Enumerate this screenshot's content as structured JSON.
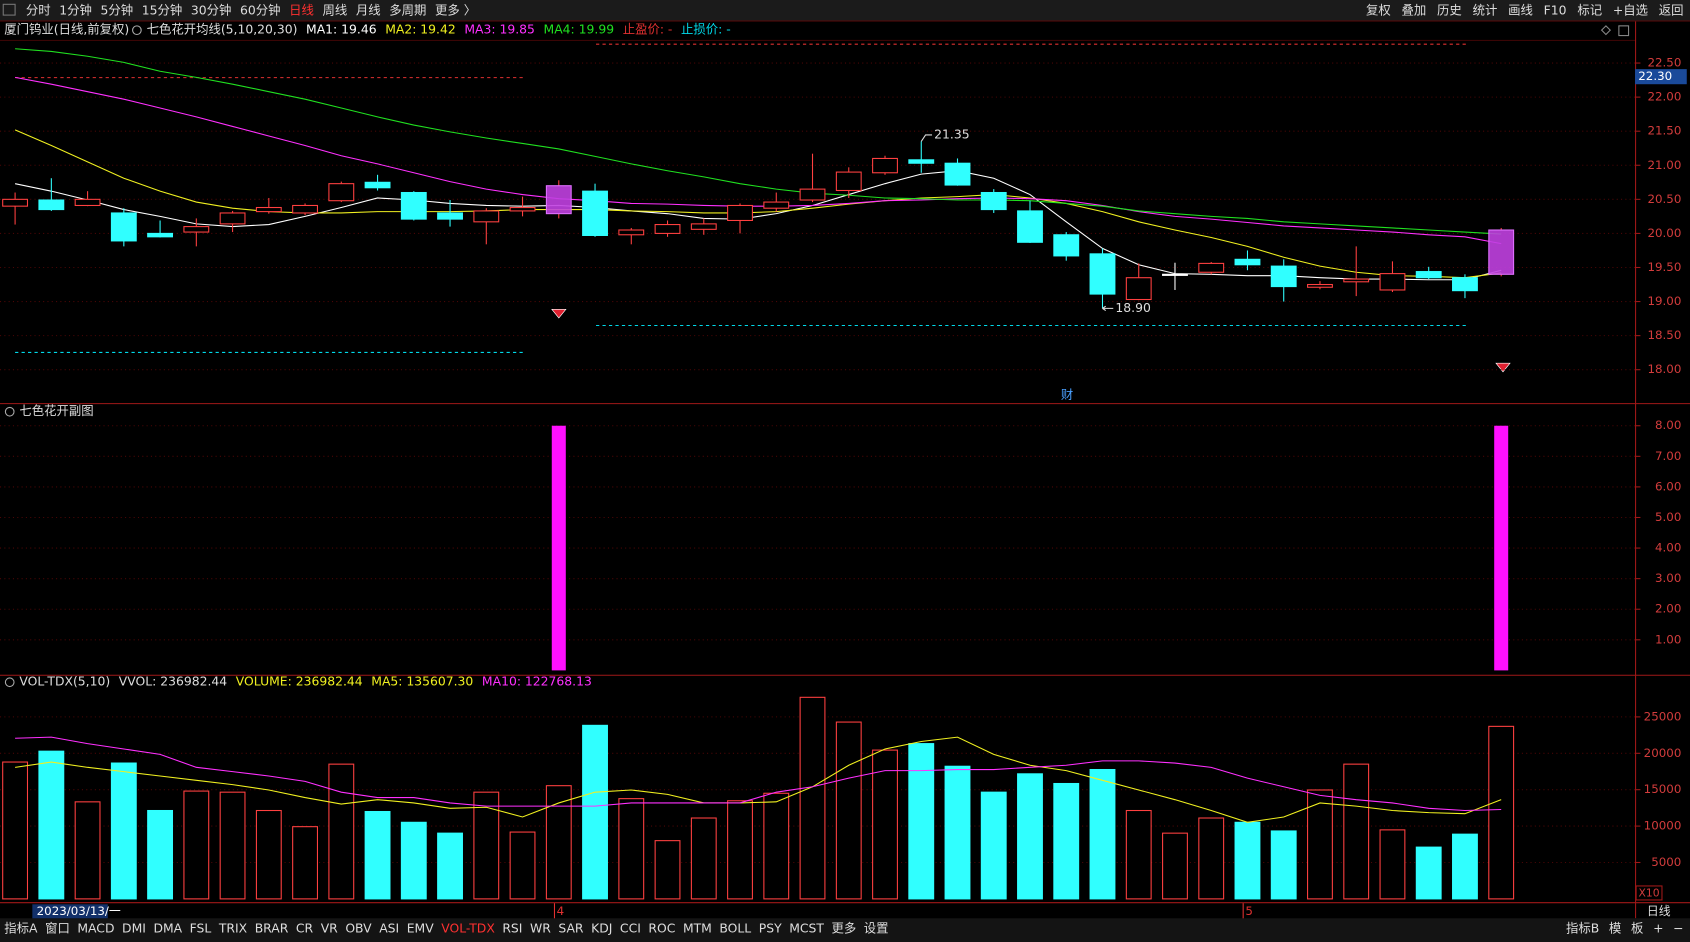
{
  "toolbar": {
    "periods": [
      "分时",
      "1分钟",
      "5分钟",
      "15分钟",
      "30分钟",
      "60分钟",
      "日线",
      "周线",
      "月线",
      "多周期",
      "更多 〉"
    ],
    "active": 6,
    "tools": [
      "复权",
      "叠加",
      "历史",
      "统计",
      "画线",
      "F10",
      "标记",
      "+自选",
      "返回"
    ]
  },
  "bottom_tabs": {
    "left": [
      "指标A",
      "窗口",
      "MACD",
      "DMI",
      "DMA",
      "FSL",
      "TRIX",
      "BRAR",
      "CR",
      "VR",
      "OBV",
      "ASI",
      "EMV",
      "VOL-TDX",
      "RSI",
      "WR",
      "SAR",
      "KDJ",
      "CCI",
      "ROC",
      "MTM",
      "BOLL",
      "PSY",
      "MCST",
      "更多",
      "设置"
    ],
    "active": 13,
    "right": [
      "指标B",
      "模",
      "板",
      "+",
      "−"
    ]
  },
  "cursor_date": "2023/03/13/一",
  "period_label": "日线",
  "event_label": "财",
  "chart_data": [
    {
      "type": "candlestick",
      "title": "厦门钨业(日线,前复权)",
      "indicator": "七色花开均线(5,10,20,30)",
      "extras": [
        {
          "text": "止盈价: -",
          "color": "#e03030"
        },
        {
          "text": "止损价: -",
          "color": "#00d8e8"
        }
      ],
      "up_color": "#ff4040",
      "down_color": "#30ffff",
      "flat_color": "#ffffff",
      "signal_color": "#c040e0",
      "open": [
        20.4,
        20.49,
        20.41,
        20.3,
        20.0,
        20.02,
        20.14,
        20.32,
        20.3,
        20.48,
        20.75,
        20.6,
        20.3,
        20.17,
        20.33,
        20.29,
        20.62,
        19.98,
        20.0,
        20.06,
        20.19,
        20.37,
        20.49,
        20.63,
        20.89,
        21.08,
        21.03,
        20.6,
        20.33,
        19.98,
        19.7,
        19.03,
        19.4,
        19.43,
        19.62,
        19.52,
        19.21,
        19.29,
        19.17,
        19.44,
        19.35,
        19.4
      ],
      "close": [
        20.5,
        20.35,
        20.5,
        19.89,
        19.95,
        20.1,
        20.3,
        20.38,
        20.41,
        20.73,
        20.67,
        20.21,
        20.21,
        20.33,
        20.38,
        20.7,
        19.97,
        20.05,
        20.13,
        20.14,
        20.41,
        20.46,
        20.65,
        20.9,
        21.1,
        21.03,
        20.71,
        20.35,
        19.87,
        19.67,
        19.11,
        19.35,
        19.4,
        19.56,
        19.54,
        19.22,
        19.25,
        19.33,
        19.41,
        19.35,
        19.16,
        20.05
      ],
      "high": [
        20.6,
        20.81,
        20.62,
        20.37,
        20.19,
        20.22,
        20.33,
        20.52,
        20.44,
        20.76,
        20.86,
        20.62,
        20.49,
        20.37,
        20.54,
        20.78,
        20.73,
        20.08,
        20.19,
        20.22,
        20.44,
        20.6,
        21.17,
        20.97,
        21.14,
        21.35,
        21.1,
        20.65,
        20.48,
        20.02,
        19.78,
        19.56,
        19.57,
        19.58,
        19.75,
        19.62,
        19.3,
        19.81,
        19.59,
        19.51,
        19.4,
        20.08
      ],
      "low": [
        20.13,
        20.33,
        20.4,
        19.81,
        19.94,
        19.81,
        20.02,
        20.29,
        20.27,
        20.46,
        20.63,
        20.19,
        20.1,
        19.84,
        20.25,
        20.22,
        19.95,
        19.84,
        19.95,
        19.98,
        20.0,
        20.32,
        20.46,
        20.52,
        20.86,
        20.89,
        20.7,
        20.3,
        19.86,
        19.6,
        18.9,
        19.02,
        19.17,
        19.4,
        19.46,
        19.0,
        19.18,
        19.08,
        19.14,
        19.33,
        19.05,
        19.37
      ],
      "max_label": "21.35",
      "min_label": "18.90",
      "series": [
        {
          "name": "MA1: 19.46",
          "color": "#ffffff",
          "values": [
            20.73,
            20.62,
            20.49,
            20.35,
            20.25,
            20.14,
            20.1,
            20.13,
            20.25,
            20.38,
            20.52,
            20.49,
            20.44,
            20.41,
            20.4,
            20.41,
            20.38,
            20.33,
            20.29,
            20.22,
            20.21,
            20.29,
            20.41,
            20.57,
            20.73,
            20.87,
            20.92,
            20.81,
            20.57,
            20.17,
            19.78,
            19.54,
            19.41,
            19.4,
            19.38,
            19.38,
            19.35,
            19.33,
            19.33,
            19.32,
            19.32,
            19.46
          ]
        },
        {
          "name": "MA2: 19.42",
          "color": "#f0f020",
          "values": [
            21.52,
            21.29,
            21.05,
            20.81,
            20.62,
            20.46,
            20.37,
            20.32,
            20.3,
            20.3,
            20.32,
            20.32,
            20.32,
            20.33,
            20.35,
            20.35,
            20.35,
            20.33,
            20.32,
            20.3,
            20.3,
            20.32,
            20.37,
            20.43,
            20.48,
            20.52,
            20.54,
            20.57,
            20.52,
            20.44,
            20.32,
            20.17,
            20.05,
            19.94,
            19.81,
            19.65,
            19.52,
            19.43,
            19.38,
            19.37,
            19.35,
            19.42
          ]
        },
        {
          "name": "MA3: 19.85",
          "color": "#ff30ff",
          "values": [
            22.29,
            22.19,
            22.08,
            21.97,
            21.84,
            21.71,
            21.57,
            21.43,
            21.29,
            21.14,
            21.02,
            20.89,
            20.76,
            20.65,
            20.57,
            20.51,
            20.48,
            20.44,
            20.43,
            20.41,
            20.4,
            20.4,
            20.41,
            20.44,
            20.48,
            20.49,
            20.51,
            20.52,
            20.51,
            20.48,
            20.41,
            20.32,
            20.25,
            20.21,
            20.16,
            20.11,
            20.08,
            20.05,
            20.02,
            19.98,
            19.95,
            19.85
          ]
        },
        {
          "name": "MA4: 19.99",
          "color": "#20e020",
          "values": [
            22.71,
            22.67,
            22.6,
            22.51,
            22.38,
            22.29,
            22.19,
            22.08,
            21.97,
            21.84,
            21.71,
            21.59,
            21.49,
            21.4,
            21.32,
            21.24,
            21.13,
            21.02,
            20.92,
            20.83,
            20.73,
            20.65,
            20.59,
            20.56,
            20.52,
            20.51,
            20.49,
            20.49,
            20.48,
            20.44,
            20.4,
            20.33,
            20.29,
            20.25,
            20.22,
            20.17,
            20.14,
            20.11,
            20.08,
            20.05,
            20.02,
            19.99
          ]
        }
      ],
      "cursor_price": {
        "value": 22.3,
        "label": "22.30"
      },
      "ylim": [
        17.51,
        22.84
      ],
      "yticks": [
        {
          "value": 18,
          "label": "18.00"
        },
        {
          "value": 18.5,
          "label": "18.50"
        },
        {
          "value": 19,
          "label": "19.00"
        },
        {
          "value": 19.5,
          "label": "19.50"
        },
        {
          "value": 20,
          "label": "20.00"
        },
        {
          "value": 20.5,
          "label": "20.50"
        },
        {
          "value": 21,
          "label": "21.00"
        },
        {
          "value": 21.5,
          "label": "21.50"
        },
        {
          "value": 22,
          "label": "22.00"
        },
        {
          "value": 22.5,
          "label": "22.50"
        }
      ],
      "grid": true
    },
    {
      "type": "bar",
      "title": "七色花开副图",
      "color": "#ff10ff",
      "values": [
        0,
        0,
        0,
        0,
        0,
        0,
        0,
        0,
        0,
        0,
        0,
        0,
        0,
        0,
        0,
        8,
        0,
        0,
        0,
        0,
        0,
        0,
        0,
        0,
        0,
        0,
        0,
        0,
        0,
        0,
        0,
        0,
        0,
        0,
        0,
        0,
        0,
        0,
        0,
        0,
        0,
        8
      ],
      "ylim": [
        0,
        8.67
      ],
      "yticks": [
        {
          "value": 1,
          "label": "1.00"
        },
        {
          "value": 2,
          "label": "2.00"
        },
        {
          "value": 3,
          "label": "3.00"
        },
        {
          "value": 4,
          "label": "4.00"
        },
        {
          "value": 5,
          "label": "5.00"
        },
        {
          "value": 6,
          "label": "6.00"
        },
        {
          "value": 7,
          "label": "7.00"
        },
        {
          "value": 8,
          "label": "8.00"
        }
      ],
      "grid": true
    },
    {
      "type": "volume",
      "title": "VOL-TDX(5,10)",
      "readouts": [
        {
          "text": "VVOL: 236982.44",
          "color": "#dddddd"
        },
        {
          "text": "VOLUME: 236982.44",
          "color": "#f0f020"
        }
      ],
      "categories": [
        null,
        null,
        null,
        null,
        null,
        null,
        null,
        null,
        null,
        null,
        null,
        null,
        null,
        null,
        null,
        "4",
        null,
        null,
        null,
        null,
        null,
        null,
        null,
        null,
        null,
        null,
        null,
        null,
        null,
        null,
        null,
        null,
        null,
        null,
        "5",
        null,
        null,
        null,
        null,
        null,
        null,
        null
      ],
      "values": [
        18800,
        20290,
        13330,
        18660,
        12140,
        14810,
        14660,
        12140,
        9920,
        18510,
        12000,
        10520,
        9030,
        14660,
        9180,
        15550,
        23840,
        13770,
        8000,
        11110,
        13480,
        14510,
        27690,
        24290,
        20440,
        21330,
        18220,
        14660,
        17180,
        15850,
        17770,
        12140,
        9030,
        11110,
        10520,
        9330,
        14960,
        18510,
        9480,
        7110,
        8890,
        23700
      ],
      "series": [
        {
          "name": "MA5: 135607.30",
          "color": "#f0f020",
          "values": [
            18070,
            18800,
            18070,
            17480,
            16880,
            16290,
            15700,
            14960,
            13920,
            13030,
            13630,
            13180,
            12440,
            12590,
            11250,
            13180,
            14660,
            14960,
            14360,
            13180,
            13180,
            13330,
            15400,
            18360,
            20590,
            21620,
            22220,
            19850,
            18360,
            17620,
            16290,
            14960,
            13630,
            12140,
            10520,
            11250,
            13180,
            12740,
            12140,
            11850,
            11700,
            13630
          ]
        },
        {
          "name": "MA10: 122768.13",
          "color": "#ff30ff",
          "values": [
            22070,
            22220,
            21330,
            20590,
            19850,
            18070,
            17480,
            16880,
            16140,
            14660,
            13920,
            13920,
            13180,
            12740,
            12740,
            12740,
            12740,
            13180,
            13180,
            13180,
            13180,
            14660,
            15400,
            16590,
            17620,
            17620,
            17770,
            17770,
            18070,
            18360,
            18960,
            18960,
            18660,
            18070,
            16590,
            15400,
            14220,
            13630,
            13180,
            12440,
            12140,
            12280
          ]
        }
      ],
      "scale_note": "X10",
      "ylim": [
        0,
        30500
      ],
      "yticks": [
        5000,
        10000,
        15000,
        20000,
        25000
      ],
      "grid": true
    }
  ]
}
